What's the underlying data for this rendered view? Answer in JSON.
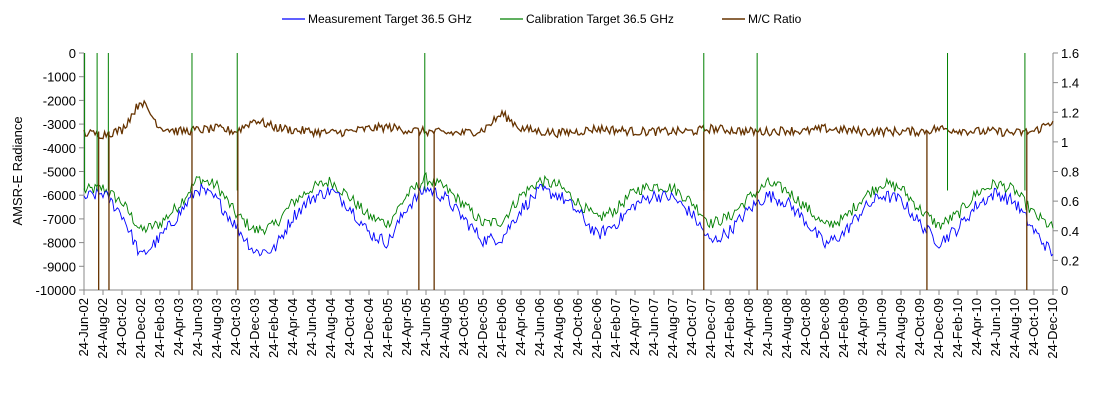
{
  "chart_data": {
    "type": "line",
    "title": "",
    "xlabel": "",
    "ylabel": "AMSR-E Radiance",
    "y2label": "",
    "ylim": [
      -10000,
      0
    ],
    "y2lim": [
      0,
      1.6
    ],
    "yticks": [
      "0",
      "-1000",
      "-2000",
      "-3000",
      "-4000",
      "-5000",
      "-6000",
      "-7000",
      "-8000",
      "-9000",
      "-10000"
    ],
    "y2ticks": [
      "1.6",
      "1.4",
      "1.2",
      "1",
      "0.8",
      "0.6",
      "0.4",
      "0.2",
      "0"
    ],
    "grid": false,
    "legend_position": "top",
    "x_range": [
      "2002-06-24",
      "2010-12-24"
    ],
    "categories": [
      "24-Jun-02",
      "24-Aug-02",
      "24-Oct-02",
      "24-Dec-02",
      "24-Feb-03",
      "24-Apr-03",
      "24-Jun-03",
      "24-Aug-03",
      "24-Oct-03",
      "24-Dec-03",
      "24-Feb-04",
      "24-Apr-04",
      "24-Jun-04",
      "24-Aug-04",
      "24-Oct-04",
      "24-Dec-04",
      "24-Feb-05",
      "24-Apr-05",
      "24-Jun-05",
      "24-Aug-05",
      "24-Oct-05",
      "24-Dec-05",
      "24-Feb-06",
      "24-Apr-06",
      "24-Jun-06",
      "24-Aug-06",
      "24-Oct-06",
      "24-Dec-06",
      "24-Feb-07",
      "24-Apr-07",
      "24-Jun-07",
      "24-Aug-07",
      "24-Oct-07",
      "24-Dec-07",
      "24-Feb-08",
      "24-Apr-08",
      "24-Jun-08",
      "24-Aug-08",
      "24-Oct-08",
      "24-Dec-08",
      "24-Feb-09",
      "24-Apr-09",
      "24-Jun-09",
      "24-Aug-09",
      "24-Oct-09",
      "24-Dec-09",
      "24-Feb-10",
      "24-Apr-10",
      "24-Jun-10",
      "24-Aug-10",
      "24-Oct-10",
      "24-Dec-10"
    ],
    "series": [
      {
        "name": "Measurement Target 36.5 GHz",
        "color": "#0000ff",
        "axis": "left",
        "values": [
          -6100,
          -5900,
          -6800,
          -8600,
          -7800,
          -6800,
          -5700,
          -6200,
          -7300,
          -8400,
          -8300,
          -6900,
          -6100,
          -5800,
          -6500,
          -7600,
          -8000,
          -6500,
          -5700,
          -6100,
          -7000,
          -7900,
          -7800,
          -6600,
          -5800,
          -6000,
          -6700,
          -7700,
          -7200,
          -6400,
          -6000,
          -6100,
          -6800,
          -8000,
          -7500,
          -6600,
          -6000,
          -6300,
          -7100,
          -8100,
          -7600,
          -6600,
          -6000,
          -6200,
          -7200,
          -8000,
          -7400,
          -6400,
          -5900,
          -6300,
          -7500,
          -8500
        ]
      },
      {
        "name": "Calibration Target 36.5 GHz",
        "color": "#008000",
        "axis": "left",
        "values": [
          -5800,
          -5700,
          -6300,
          -7500,
          -7200,
          -6400,
          -5300,
          -5600,
          -6800,
          -7500,
          -7300,
          -6300,
          -5700,
          -5400,
          -6100,
          -6900,
          -7200,
          -6000,
          -5300,
          -5700,
          -6400,
          -7200,
          -7100,
          -6000,
          -5400,
          -5600,
          -6300,
          -7000,
          -6600,
          -5800,
          -5600,
          -5700,
          -6300,
          -7200,
          -6900,
          -6100,
          -5500,
          -5800,
          -6500,
          -7300,
          -7000,
          -6100,
          -5500,
          -5700,
          -6600,
          -7300,
          -6800,
          -5900,
          -5500,
          -5800,
          -6800,
          -7400
        ]
      },
      {
        "name": "M/C Ratio",
        "color": "#663300",
        "axis": "right",
        "values": [
          1.06,
          1.05,
          1.08,
          1.28,
          1.1,
          1.07,
          1.08,
          1.09,
          1.07,
          1.15,
          1.1,
          1.08,
          1.07,
          1.06,
          1.07,
          1.09,
          1.1,
          1.08,
          1.07,
          1.06,
          1.06,
          1.08,
          1.19,
          1.09,
          1.07,
          1.06,
          1.07,
          1.09,
          1.08,
          1.07,
          1.07,
          1.07,
          1.07,
          1.09,
          1.08,
          1.07,
          1.07,
          1.08,
          1.07,
          1.09,
          1.08,
          1.07,
          1.07,
          1.07,
          1.07,
          1.09,
          1.08,
          1.07,
          1.07,
          1.06,
          1.07,
          1.14
        ]
      }
    ],
    "spikes": {
      "calibration_to_zero_dates": [
        "2002-06-26",
        "2002-08-05",
        "2002-09-10",
        "2003-06-05",
        "2003-10-28",
        "2005-06-20",
        "2007-12-01",
        "2008-05-20",
        "2010-01-20",
        "2010-09-25"
      ],
      "ratio_drop_to_zero_dates": [
        "2002-08-10",
        "2002-09-12",
        "2003-06-05",
        "2003-10-30",
        "2005-06-01",
        "2005-07-20",
        "2007-12-01",
        "2008-05-20",
        "2009-11-15",
        "2010-10-01"
      ]
    },
    "colors": {
      "axis": "#888888"
    }
  }
}
